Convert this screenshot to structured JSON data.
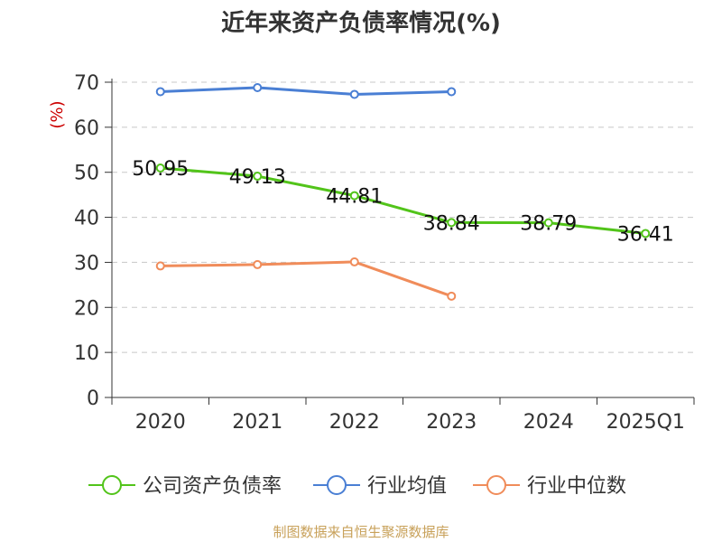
{
  "chart_data": {
    "type": "line",
    "title": "近年来资产负债率情况(%)",
    "ylabel": "(%)",
    "xlabel": "",
    "categories": [
      "2020",
      "2021",
      "2022",
      "2023",
      "2024",
      "2025Q1"
    ],
    "ylim": [
      0,
      70
    ],
    "yticks": [
      0,
      10,
      20,
      30,
      40,
      50,
      60,
      70
    ],
    "grid": true,
    "legend_position": "bottom",
    "series": [
      {
        "name": "公司资产负债率",
        "color": "#52c41a",
        "values": [
          50.95,
          49.13,
          44.81,
          38.84,
          38.79,
          36.41
        ],
        "labels": [
          "50.95",
          "49.13",
          "44.81",
          "38.84",
          "38.79",
          "36.41"
        ]
      },
      {
        "name": "行业均值",
        "color": "#4a7fd4",
        "values": [
          67.9,
          68.8,
          67.3,
          67.9,
          null,
          null
        ]
      },
      {
        "name": "行业中位数",
        "color": "#f08c5a",
        "values": [
          29.2,
          29.5,
          30.1,
          22.5,
          null,
          null
        ]
      }
    ]
  },
  "source": "制图数据来自恒生聚源数据库"
}
